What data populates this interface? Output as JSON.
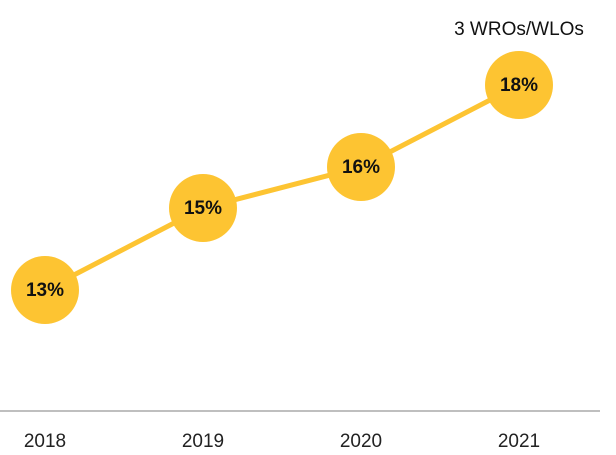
{
  "chart_data": {
    "type": "line",
    "categories": [
      "2018",
      "2019",
      "2020",
      "2021"
    ],
    "values": [
      13,
      15,
      16,
      18
    ],
    "value_labels": [
      "13%",
      "15%",
      "16%",
      "18%"
    ],
    "color": "#fdc432",
    "annotation": "3 WROs/WLOs"
  }
}
